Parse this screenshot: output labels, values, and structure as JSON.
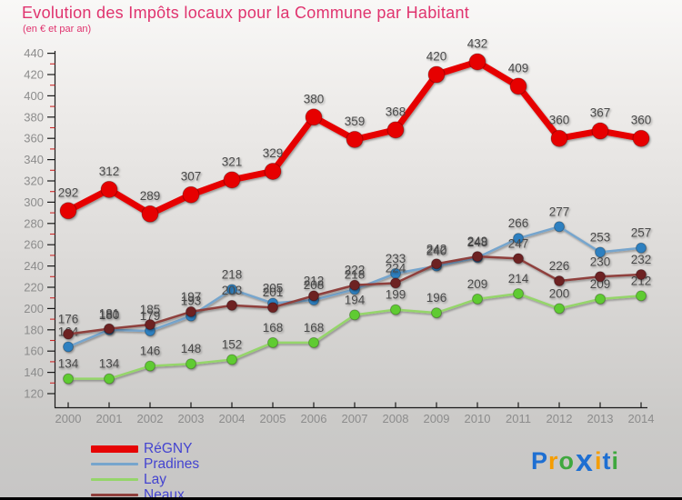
{
  "title": "Evolution des Impôts locaux pour la Commune par Habitant",
  "subtitle": "(en € et par an)",
  "colors": {
    "title": "#e0336e",
    "legend_text": "#4444d0",
    "data_label": "#4a4a4a",
    "axis_label": "#8c8c8c",
    "axis_line": "#1a1a1a",
    "minor_tick": "#cc2a2a"
  },
  "chart_data": {
    "type": "line",
    "x": [
      2000,
      2001,
      2002,
      2003,
      2004,
      2005,
      2006,
      2007,
      2008,
      2009,
      2010,
      2011,
      2012,
      2013,
      2014
    ],
    "series": [
      {
        "name": "RéGNY",
        "line_color": "#e60404",
        "dot_color": "#e60404",
        "line_width": 7,
        "dot_radius": 9,
        "values": [
          292,
          312,
          289,
          307,
          321,
          329,
          380,
          359,
          368,
          420,
          432,
          409,
          360,
          367,
          360
        ]
      },
      {
        "name": "Pradines",
        "line_color": "#76a5cd",
        "dot_color": "#2e80c0",
        "line_width": 2.5,
        "dot_radius": 5.5,
        "values": [
          164,
          180,
          179,
          193,
          218,
          205,
          208,
          218,
          233,
          240,
          248,
          266,
          277,
          253,
          257
        ]
      },
      {
        "name": "Lay",
        "line_color": "#95d56b",
        "dot_color": "#5fcb30",
        "line_width": 2.5,
        "dot_radius": 5.5,
        "values": [
          134,
          134,
          146,
          148,
          152,
          168,
          168,
          194,
          199,
          196,
          209,
          214,
          200,
          209,
          212
        ]
      },
      {
        "name": "Neaux",
        "line_color": "#8f3f3c",
        "dot_color": "#6d2024",
        "line_width": 2.5,
        "dot_radius": 5.5,
        "values": [
          176,
          181,
          185,
          197,
          203,
          201,
          212,
          222,
          224,
          242,
          249,
          247,
          226,
          230,
          232
        ]
      }
    ],
    "ylim": [
      120,
      440
    ],
    "ytick_step": 20,
    "y_ticks": [
      120,
      140,
      160,
      180,
      200,
      220,
      240,
      260,
      280,
      300,
      320,
      340,
      360,
      380,
      400,
      420,
      440
    ],
    "xlabel": "",
    "ylabel": "",
    "grid": false,
    "legend_position": "bottom-left"
  },
  "watermark": {
    "text": "Proxiti",
    "letters": [
      {
        "ch": "P",
        "color": "#1e6fd2"
      },
      {
        "ch": "r",
        "color": "#f59d00"
      },
      {
        "ch": "o",
        "color": "#3fa83f"
      },
      {
        "ch": "x",
        "color": "#1e6fd2",
        "big": true
      },
      {
        "ch": "i",
        "color": "#f59d00"
      },
      {
        "ch": "t",
        "color": "#1e6fd2"
      },
      {
        "ch": "i",
        "color": "#3fa83f"
      }
    ]
  }
}
